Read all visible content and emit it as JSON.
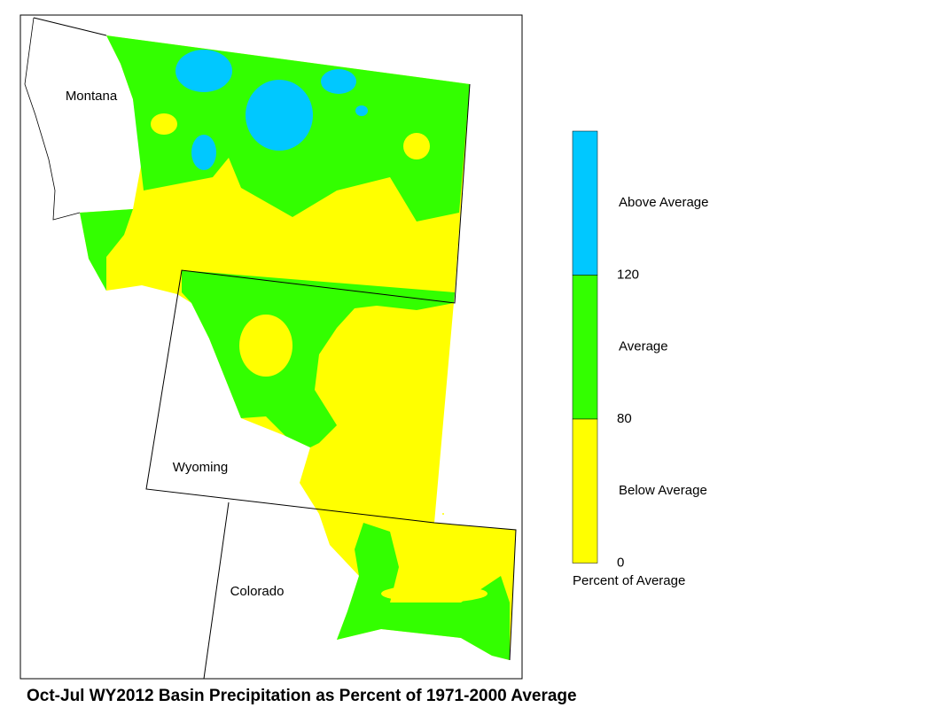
{
  "map": {
    "title": "Oct-Jul WY2012 Basin Precipitation as Percent of 1971-2000 Average",
    "states": [
      "Montana",
      "Wyoming",
      "Colorado"
    ],
    "legend": {
      "title": "Percent of Average",
      "bands": [
        {
          "label": "Above Average",
          "color": "#00c8ff"
        },
        {
          "label": "Average",
          "color": "#33ff00"
        },
        {
          "label": "Below Average",
          "color": "#ffff00"
        }
      ],
      "ticks": [
        120,
        80,
        0
      ]
    }
  }
}
